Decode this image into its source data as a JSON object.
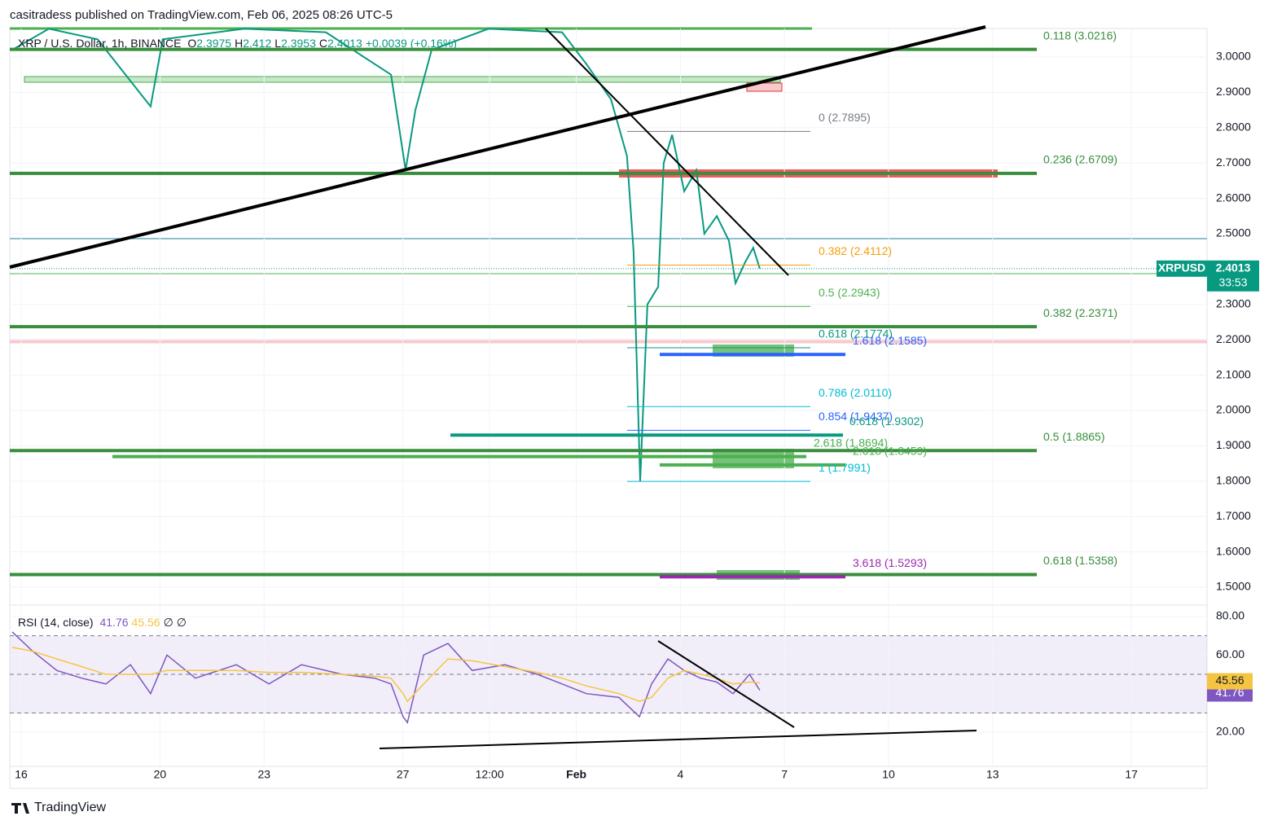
{
  "header": {
    "publisher": "casitradess published on TradingView.com, Feb 06, 2025 08:26 UTC-5"
  },
  "footer": {
    "brand": "TradingView"
  },
  "chart_data": [
    {
      "type": "line",
      "title": "XRP / U.S. Dollar, 1h, BINANCE",
      "legend_values": [
        {
          "label": "O",
          "value": 2.3975
        },
        {
          "label": "H",
          "value": 2.412
        },
        {
          "label": "L",
          "value": 2.3953
        },
        {
          "label": "C",
          "value": 2.4013
        }
      ],
      "change": "+0.0039 (+0.16%)",
      "symbol": "XRPUSD",
      "last": 2.4013,
      "countdown": "33:53",
      "x": [
        -0.26,
        0.8,
        2.2,
        3.73,
        4.08,
        6.43,
        8.78,
        10.66,
        11.08,
        11.36,
        11.83,
        13.47,
        15.59,
        16.29,
        17.0,
        17.46,
        17.65,
        17.84,
        18.05,
        18.36,
        18.52,
        18.76,
        19.11,
        19.46,
        19.69,
        20.05,
        20.4,
        20.59,
        20.87,
        21.1,
        21.29
      ],
      "series": [
        {
          "color": "#089981",
          "values": [
            3.02,
            3.08,
            3.05,
            2.86,
            3.05,
            3.08,
            3.07,
            2.95,
            2.68,
            2.85,
            3.02,
            3.08,
            3.07,
            2.98,
            2.88,
            2.72,
            2.45,
            1.8,
            2.3,
            2.35,
            2.7,
            2.78,
            2.62,
            2.68,
            2.5,
            2.55,
            2.48,
            2.36,
            2.42,
            2.46,
            2.4013
          ]
        }
      ],
      "xlim": [
        -0.33,
        34.18
      ],
      "xticks": [
        {
          "value": 0,
          "label": "16"
        },
        {
          "value": 4,
          "label": "20"
        },
        {
          "value": 7,
          "label": "23"
        },
        {
          "value": 11,
          "label": "27"
        },
        {
          "value": 13.5,
          "label": "12:00"
        },
        {
          "value": 16,
          "label": "Feb"
        },
        {
          "value": 19,
          "label": "4"
        },
        {
          "value": 22,
          "label": "7"
        },
        {
          "value": 25,
          "label": "10"
        },
        {
          "value": 28,
          "label": "13"
        },
        {
          "value": 32,
          "label": "17"
        }
      ],
      "ylim": [
        1.4516,
        3.0806
      ],
      "yticks": [
        {
          "value": 1.5,
          "label": "1.5000"
        },
        {
          "value": 1.6,
          "label": "1.6000"
        },
        {
          "value": 1.7,
          "label": "1.7000"
        },
        {
          "value": 1.8,
          "label": "1.8000"
        },
        {
          "value": 1.9,
          "label": "1.9000"
        },
        {
          "value": 2.0,
          "label": "2.0000"
        },
        {
          "value": 2.1,
          "label": "2.1000"
        },
        {
          "value": 2.2,
          "label": "2.2000"
        },
        {
          "value": 2.3,
          "label": "2.3000"
        },
        {
          "value": 2.5,
          "label": "2.5000"
        },
        {
          "value": 2.6,
          "label": "2.6000"
        },
        {
          "value": 2.7,
          "label": "2.7000"
        },
        {
          "value": 2.8,
          "label": "2.8000"
        },
        {
          "value": 2.9,
          "label": "2.9000"
        },
        {
          "value": 3.0,
          "label": "3.0000"
        }
      ],
      "grid": true,
      "levels": [
        {
          "label": "0.118 (3.0216)",
          "value": 3.0216,
          "color": "#388e3c"
        },
        {
          "label": "0.236 (2.6709)",
          "value": 2.6709,
          "color": "#388e3c"
        },
        {
          "label": "0.382 (2.2371)",
          "value": 2.2371,
          "color": "#388e3c"
        },
        {
          "label": "0.5 (1.8865)",
          "value": 1.8865,
          "color": "#388e3c"
        },
        {
          "label": "0.618 (1.5358)",
          "value": 1.5358,
          "color": "#388e3c"
        }
      ],
      "fib_levels": [
        {
          "label": "0 (2.7895)",
          "value": 2.7895,
          "color": "#787b86"
        },
        {
          "label": "0.382 (2.4112)",
          "value": 2.4112,
          "color": "#f59e0b"
        },
        {
          "label": "0.5 (2.2943)",
          "value": 2.2943,
          "color": "#4caf50"
        },
        {
          "label": "0.618 (2.1774)",
          "value": 2.1774,
          "color": "#089981"
        },
        {
          "label": "0.786 (2.0110)",
          "value": 2.011,
          "color": "#00bcd4"
        },
        {
          "label": "0.854 (1.9437)",
          "value": 1.9437,
          "color": "#2962ff"
        },
        {
          "label": "1 (1.7991)",
          "value": 1.7991,
          "color": "#00bcd4"
        }
      ],
      "extension_levels": [
        {
          "label": "1.618 (2.1585)",
          "value": 2.1585,
          "color": "#2962ff"
        },
        {
          "label": "0.618 (1.9302)",
          "value": 1.9302,
          "color": "#089981"
        },
        {
          "label": "2.618 (1.8694)",
          "value": 1.8694,
          "color": "#4caf50"
        },
        {
          "label": "2.618 (1.8459)",
          "value": 1.8459,
          "color": "#4caf50"
        },
        {
          "label": "3.618 (1.5293)",
          "value": 1.5293,
          "color": "#9c27b0"
        }
      ]
    },
    {
      "type": "line",
      "title": "RSI (14, close)",
      "symbols": [
        "∅",
        "∅"
      ],
      "x": [
        -0.26,
        0.33,
        1.03,
        1.74,
        2.44,
        3.15,
        3.73,
        4.2,
        5.02,
        6.2,
        7.14,
        8.08,
        9.25,
        10.19,
        10.66,
        11.01,
        11.13,
        11.6,
        12.3,
        13.0,
        13.94,
        14.88,
        15.59,
        16.29,
        17.23,
        17.82,
        18.17,
        18.64,
        19.11,
        19.58,
        20.05,
        20.52,
        20.99,
        21.29
      ],
      "series": [
        {
          "color": "#7e57c2",
          "values": [
            72,
            62,
            52,
            48,
            45,
            55,
            40,
            60,
            48,
            55,
            45,
            55,
            50,
            48,
            45,
            28,
            25,
            60,
            66,
            52,
            55,
            50,
            45,
            40,
            38,
            28,
            45,
            58,
            52,
            48,
            46,
            40,
            50,
            41.76
          ]
        },
        {
          "color": "#f5c542",
          "values": [
            64,
            62,
            58,
            54,
            50,
            50,
            50,
            52,
            52,
            52,
            51,
            51,
            50,
            49,
            48,
            40,
            36,
            45,
            58,
            57,
            54,
            51,
            48,
            44,
            40,
            36,
            38,
            48,
            52,
            50,
            48,
            45,
            46,
            45.56
          ]
        }
      ],
      "ylim": [
        2.69,
        85.07
      ],
      "yticks": [
        {
          "value": 20,
          "label": "20.00"
        },
        {
          "value": 60,
          "label": "60.00"
        },
        {
          "value": 80,
          "label": "80.00"
        }
      ],
      "bands": [
        30,
        50,
        70
      ]
    }
  ]
}
